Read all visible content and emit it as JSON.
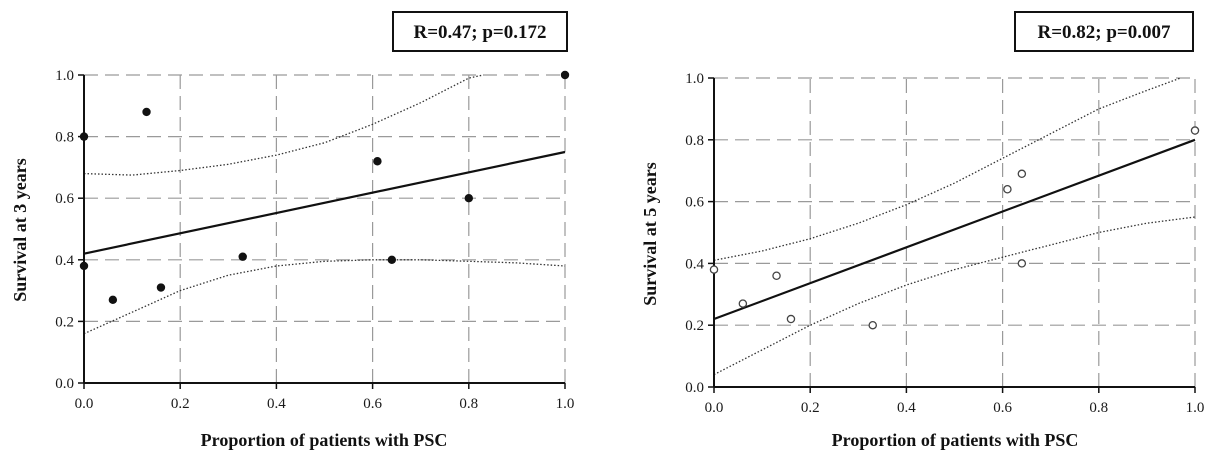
{
  "chart_data": [
    {
      "type": "scatter",
      "title": "",
      "stat_label": "R=0.47; p=0.172",
      "xlabel": "Proportion of patients with PSC",
      "ylabel": "Survival at 3 years",
      "xlim": [
        0,
        1
      ],
      "ylim": [
        0,
        1
      ],
      "xticks": [
        "0.0",
        "0.2",
        "0.4",
        "0.6",
        "0.8",
        "1.0"
      ],
      "yticks": [
        "0.0",
        "0.2",
        "0.4",
        "0.6",
        "0.8",
        "1.0"
      ],
      "grid": true,
      "marker": "filled",
      "points": [
        {
          "x": 0.0,
          "y": 0.8
        },
        {
          "x": 0.0,
          "y": 0.38
        },
        {
          "x": 0.06,
          "y": 0.27
        },
        {
          "x": 0.13,
          "y": 0.88
        },
        {
          "x": 0.16,
          "y": 0.31
        },
        {
          "x": 0.33,
          "y": 0.41
        },
        {
          "x": 0.61,
          "y": 0.72
        },
        {
          "x": 0.64,
          "y": 0.4
        },
        {
          "x": 0.8,
          "y": 0.6
        },
        {
          "x": 1.0,
          "y": 1.0
        }
      ],
      "regression": {
        "intercept": 0.42,
        "slope": 0.33
      },
      "ci_upper": [
        [
          0.0,
          0.68
        ],
        [
          0.1,
          0.675
        ],
        [
          0.2,
          0.69
        ],
        [
          0.3,
          0.71
        ],
        [
          0.4,
          0.74
        ],
        [
          0.5,
          0.78
        ],
        [
          0.6,
          0.84
        ],
        [
          0.7,
          0.91
        ],
        [
          0.8,
          0.99
        ],
        [
          0.83,
          1.0
        ]
      ],
      "ci_lower": [
        [
          0.0,
          0.16
        ],
        [
          0.1,
          0.23
        ],
        [
          0.2,
          0.3
        ],
        [
          0.3,
          0.35
        ],
        [
          0.4,
          0.38
        ],
        [
          0.5,
          0.395
        ],
        [
          0.6,
          0.4
        ],
        [
          0.7,
          0.4
        ],
        [
          0.8,
          0.395
        ],
        [
          0.9,
          0.39
        ],
        [
          1.0,
          0.38
        ]
      ]
    },
    {
      "type": "scatter",
      "title": "",
      "stat_label": "R=0.82; p=0.007",
      "xlabel": "Proportion of patients with PSC",
      "ylabel": "Survival at 5 years",
      "xlim": [
        0,
        1
      ],
      "ylim": [
        0,
        1
      ],
      "xticks": [
        "0.0",
        "0.2",
        "0.4",
        "0.6",
        "0.8",
        "1.0"
      ],
      "yticks": [
        "0.0",
        "0.2",
        "0.4",
        "0.6",
        "0.8",
        "1.0"
      ],
      "grid": true,
      "marker": "open",
      "points": [
        {
          "x": 0.0,
          "y": 0.38
        },
        {
          "x": 0.06,
          "y": 0.27
        },
        {
          "x": 0.13,
          "y": 0.36
        },
        {
          "x": 0.16,
          "y": 0.22
        },
        {
          "x": 0.33,
          "y": 0.2
        },
        {
          "x": 0.61,
          "y": 0.64
        },
        {
          "x": 0.64,
          "y": 0.69
        },
        {
          "x": 0.64,
          "y": 0.4
        },
        {
          "x": 1.0,
          "y": 0.83
        }
      ],
      "regression": {
        "intercept": 0.22,
        "slope": 0.58
      },
      "ci_upper": [
        [
          0.0,
          0.41
        ],
        [
          0.1,
          0.44
        ],
        [
          0.2,
          0.48
        ],
        [
          0.3,
          0.53
        ],
        [
          0.4,
          0.59
        ],
        [
          0.5,
          0.66
        ],
        [
          0.6,
          0.74
        ],
        [
          0.7,
          0.82
        ],
        [
          0.8,
          0.9
        ],
        [
          0.9,
          0.96
        ],
        [
          0.97,
          1.0
        ]
      ],
      "ci_lower": [
        [
          0.0,
          0.04
        ],
        [
          0.1,
          0.12
        ],
        [
          0.2,
          0.2
        ],
        [
          0.3,
          0.27
        ],
        [
          0.4,
          0.33
        ],
        [
          0.5,
          0.38
        ],
        [
          0.6,
          0.42
        ],
        [
          0.7,
          0.46
        ],
        [
          0.8,
          0.5
        ],
        [
          0.9,
          0.53
        ],
        [
          1.0,
          0.55
        ]
      ]
    }
  ]
}
